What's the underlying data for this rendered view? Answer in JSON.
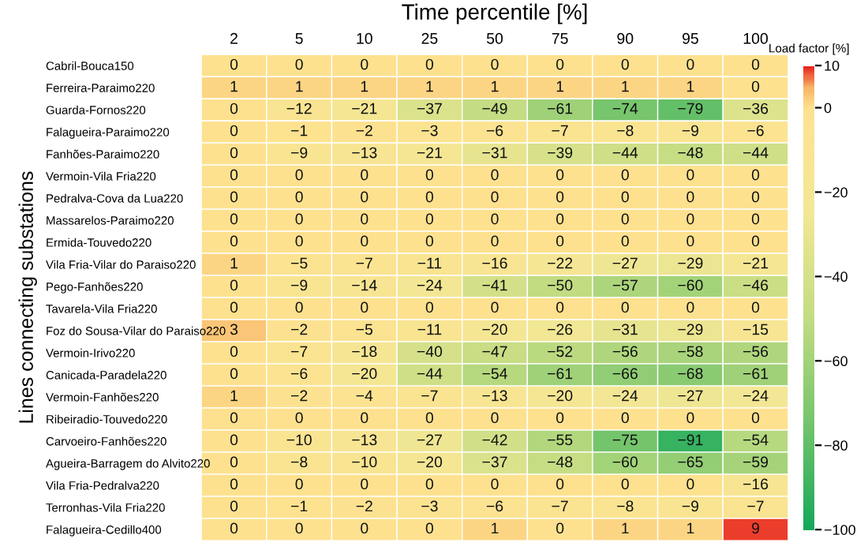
{
  "chart_data": {
    "type": "heatmap",
    "xlabel": "Time percentile [%]",
    "ylabel": "Lines connecting substations",
    "clabel": "Load factor [%]",
    "categories": [
      "2",
      "5",
      "10",
      "25",
      "50",
      "75",
      "90",
      "95",
      "100"
    ],
    "y_categories": [
      "Cabril-Bouca150",
      "Ferreira-Paraimo220",
      "Guarda-Fornos220",
      "Falagueira-Paraimo220",
      "Fanhões-Paraimo220",
      "Vermoin-Vila Fria220",
      "Pedralva-Cova da Lua220",
      "Massarelos-Paraimo220",
      "Ermida-Touvedo220",
      "Vila Fria-Vilar do Paraiso220",
      "Pego-Fanhões220",
      "Tavarela-Vila Fria220",
      "Foz do Sousa-Vilar do Paraiso220",
      "Vermoin-Irivo220",
      "Canicada-Paradela220",
      "Vermoin-Fanhões220",
      "Ribeiradio-Touvedo220",
      "Carvoeiro-Fanhões220",
      "Agueira-Barragem do Alvito220",
      "Vila Fria-Pedralva220",
      "Terronhas-Vila Fria220",
      "Falagueira-Cedillo400"
    ],
    "cells": [
      [
        0,
        0,
        0,
        0,
        0,
        0,
        0,
        0,
        0
      ],
      [
        1,
        1,
        1,
        1,
        1,
        1,
        1,
        1,
        0
      ],
      [
        0,
        -12,
        -21,
        -37,
        -49,
        -61,
        -74,
        -79,
        -36
      ],
      [
        0,
        -1,
        -2,
        -3,
        -6,
        -7,
        -8,
        -9,
        -6
      ],
      [
        0,
        -9,
        -13,
        -21,
        -31,
        -39,
        -44,
        -48,
        -44
      ],
      [
        0,
        0,
        0,
        0,
        0,
        0,
        0,
        0,
        0
      ],
      [
        0,
        0,
        0,
        0,
        0,
        0,
        0,
        0,
        0
      ],
      [
        0,
        0,
        0,
        0,
        0,
        0,
        0,
        0,
        0
      ],
      [
        0,
        0,
        0,
        0,
        0,
        0,
        0,
        0,
        0
      ],
      [
        1,
        -5,
        -7,
        -11,
        -16,
        -22,
        -27,
        -29,
        -21
      ],
      [
        0,
        -9,
        -14,
        -24,
        -41,
        -50,
        -57,
        -60,
        -46
      ],
      [
        0,
        0,
        0,
        0,
        0,
        0,
        0,
        0,
        0
      ],
      [
        3,
        -2,
        -5,
        -11,
        -20,
        -26,
        -31,
        -29,
        -15
      ],
      [
        0,
        -7,
        -18,
        -40,
        -47,
        -52,
        -56,
        -58,
        -56
      ],
      [
        0,
        -6,
        -20,
        -44,
        -54,
        -61,
        -66,
        -68,
        -61
      ],
      [
        1,
        -2,
        -4,
        -7,
        -13,
        -20,
        -24,
        -27,
        -24
      ],
      [
        0,
        0,
        0,
        0,
        0,
        0,
        0,
        0,
        0
      ],
      [
        0,
        -10,
        -13,
        -27,
        -42,
        -55,
        -75,
        -91,
        -54
      ],
      [
        0,
        -8,
        -10,
        -20,
        -37,
        -48,
        -60,
        -65,
        -59
      ],
      [
        0,
        0,
        0,
        0,
        0,
        0,
        0,
        0,
        -16
      ],
      [
        0,
        -1,
        -2,
        -3,
        -6,
        -7,
        -8,
        -9,
        -7
      ],
      [
        0,
        0,
        0,
        0,
        1,
        0,
        1,
        1,
        9
      ]
    ],
    "clim": [
      -100,
      10
    ],
    "cticks": [
      10,
      0,
      -20,
      -40,
      -60,
      -80,
      -100
    ],
    "data_labels": true
  }
}
